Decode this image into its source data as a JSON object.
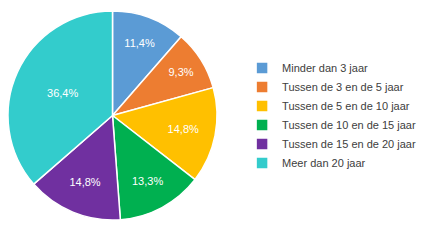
{
  "chart_data": {
    "type": "pie",
    "categories": [
      "Minder dan 3 jaar",
      "Tussen de 3 en de 5 jaar",
      "Tussen de 5 en de 10 jaar",
      "Tussen de 10 en de 15 jaar",
      "Tussen de 15 en de 20 jaar",
      "Meer dan 20 jaar"
    ],
    "values": [
      11.4,
      9.3,
      14.8,
      13.3,
      14.8,
      36.4
    ],
    "value_labels": [
      "11,4%",
      "9,3%",
      "14,8%",
      "13,3%",
      "14,8%",
      "36,4%"
    ],
    "colors": [
      "#5b9bd5",
      "#ed7d31",
      "#ffc000",
      "#00b050",
      "#7030a0",
      "#33cccc"
    ],
    "data_labels": true,
    "legend": "right"
  }
}
